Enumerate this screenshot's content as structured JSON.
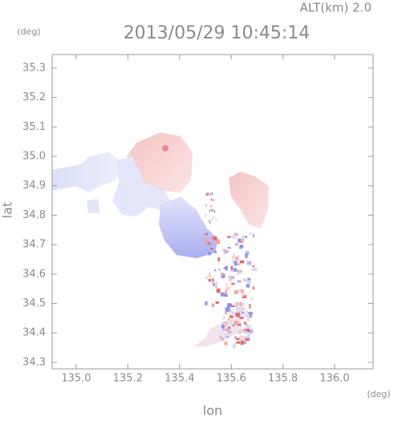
{
  "chart_data": {
    "type": "map",
    "title": "2013/05/29 10:45:14",
    "subtitle": "ALT(km) 2.0",
    "x_label": "lon",
    "y_label": "lat",
    "x_unit": "(deg)",
    "y_unit": "(deg)",
    "xlim": [
      134.907,
      136.149
    ],
    "ylim": [
      34.278,
      35.346
    ],
    "xticks": [
      {
        "value": 135,
        "label": "135.0"
      },
      135.2,
      135.4,
      135.6,
      135.8,
      {
        "value": 136,
        "label": "136.0"
      }
    ],
    "yticks": [
      34.3,
      34.4,
      34.5,
      34.6,
      34.7,
      34.8,
      34.9,
      {
        "value": 35,
        "label": "35.0"
      },
      35.1,
      35.2,
      35.3
    ]
  }
}
